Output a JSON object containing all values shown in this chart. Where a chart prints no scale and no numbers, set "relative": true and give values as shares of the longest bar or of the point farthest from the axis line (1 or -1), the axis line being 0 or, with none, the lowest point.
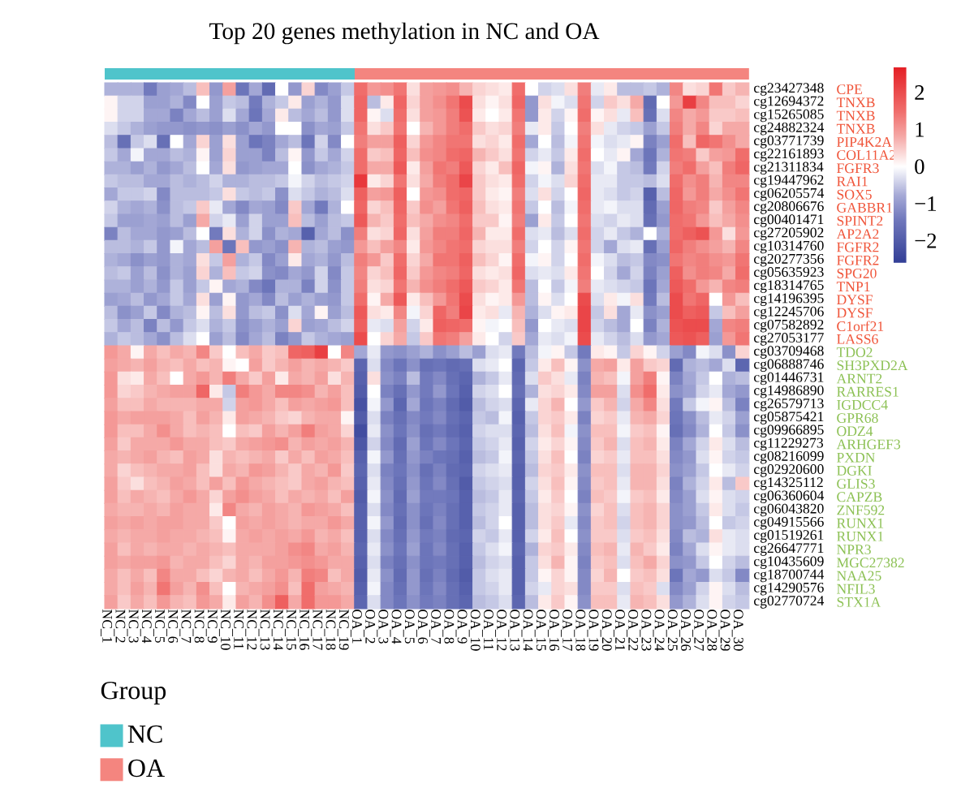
{
  "chart_data": [
    {
      "type": "bar",
      "title": "Top 20 genes methylation in NC and OA",
      "orientation": "horizontal",
      "stacked": true,
      "relative": true,
      "categories": [
        null
      ],
      "series": [
        {
          "name": "NC",
          "color": "#4fc4cb",
          "values": [
            0.388
          ]
        },
        {
          "name": "OA",
          "color": "#f4857f",
          "values": [
            0.612
          ]
        }
      ],
      "legend": "bottom left",
      "legend_title": "Group"
    },
    {
      "type": "heatmap",
      "categories": [
        "NC_1",
        "NC_2",
        "NC_3",
        "NC_4",
        "NC_5",
        "NC_6",
        "NC_7",
        "NC_8",
        "NC_9",
        "NC_10",
        "NC_11",
        "NC_12",
        "NC_13",
        "NC_14",
        "NC_15",
        "NC_16",
        "NC_17",
        "NC_18",
        "NC_19",
        "OA_1",
        "OA_2",
        "OA_3",
        "OA_4",
        "OA_5",
        "OA_6",
        "OA_7",
        "OA_8",
        "OA_9",
        "OA_10",
        "OA_11",
        "OA_12",
        "OA_13",
        "OA_14",
        "OA_15",
        "OA_16",
        "OA_17",
        "OA_18",
        "OA_19",
        "OA_20",
        "OA_21",
        "OA_22",
        "OA_23",
        "OA_24",
        "OA_25",
        "OA_26",
        "OA_27",
        "OA_28",
        "OA_29",
        "OA_30"
      ],
      "y_categories": [
        "cg23427348",
        "cg12694372",
        "cg15265085",
        "cg24882324",
        "cg03771739",
        "cg22161893",
        "cg21311834",
        "cg19447962",
        "cg06205574",
        "cg20806676",
        "cg00401471",
        "cg27205902",
        "cg10314760",
        "cg20277356",
        "cg05635923",
        "cg18314765",
        "cg14196395",
        "cg12245706",
        "cg07582892",
        "cg27053177",
        "cg03709468",
        "cg06888746",
        "cg01446731",
        "cg14986890",
        "cg26579713",
        "cg05875421",
        "cg09966895",
        "cg11229273",
        "cg08216099",
        "cg02920600",
        "cg14325112",
        "cg06360604",
        "cg06043820",
        "cg04915566",
        "cg01519261",
        "cg26647771",
        "cg10435609",
        "cg18700744",
        "cg14290576",
        "cg02770724"
      ],
      "y2_categories": [
        "CPE",
        "TNXB",
        "TNXB",
        "TNXB",
        "PIP4K2A",
        "COL11A2",
        "FGFR3",
        "RAI1",
        "SOX5",
        "GABBR1",
        "SPINT2",
        "AP2A2",
        "FGFR2",
        "FGFR2",
        "SPG20",
        "TNP1",
        "DYSF",
        "DYSF",
        "C1orf21",
        "LASS6",
        "TDO2",
        "SH3PXD2A",
        "ARNT2",
        "RARRES1",
        "IGDCC4",
        "GPR68",
        "ODZ4",
        "ARHGEF3",
        "PXDN",
        "DGKI",
        "GLIS3",
        "CAPZB",
        "ZNF592",
        "RUNX1",
        "RUNX1",
        "NPR3",
        "MGC27382",
        "NAA25",
        "NFIL3",
        "STX1A"
      ],
      "cells": [
        [
          -0.7,
          -0.7,
          -0.7,
          -1.4,
          -0.9,
          -0.8,
          -0.6,
          0.6,
          -1.0,
          0.9,
          -1.5,
          -0.8,
          -1.7,
          0.0,
          -1.0,
          0.4,
          -1.2,
          -0.9,
          -0.5,
          1.5,
          1.0,
          1.1,
          1.4,
          0.3,
          0.9,
          1.0,
          1.1,
          0.7,
          0.4,
          0.3,
          0.2,
          1.5,
          0.0,
          -0.4,
          -0.3,
          0.3,
          1.3,
          -0.2,
          0.2,
          -0.6,
          -0.6,
          -0.5,
          -0.7,
          1.2,
          0.3,
          0.4,
          1.4,
          0.5,
          0.7
        ],
        [
          0.1,
          -0.4,
          -0.4,
          -0.9,
          -0.9,
          -0.7,
          -1.2,
          0.0,
          -0.9,
          -0.5,
          -0.6,
          -1.4,
          -0.7,
          -0.5,
          0.2,
          -0.9,
          -0.7,
          -1.0,
          -0.3,
          1.6,
          -0.6,
          0.2,
          1.6,
          0.4,
          0.9,
          1.1,
          1.4,
          2.0,
          0.3,
          0.1,
          0.3,
          1.6,
          -1.0,
          0.3,
          -0.1,
          -0.3,
          1.4,
          -0.4,
          0.5,
          0.3,
          0.8,
          -1.7,
          0.0,
          1.0,
          2.2,
          1.2,
          0.6,
          0.6,
          0.4
        ],
        [
          0.1,
          -0.4,
          -0.4,
          -0.8,
          -0.8,
          -1.3,
          -0.8,
          -0.6,
          -0.9,
          -0.3,
          -0.8,
          -1.5,
          -0.8,
          0.2,
          -0.6,
          -0.8,
          -0.6,
          -1.0,
          -0.3,
          1.6,
          0.1,
          -0.3,
          1.5,
          0.3,
          0.9,
          1.0,
          1.3,
          1.9,
          0.2,
          0.0,
          0.2,
          1.4,
          -1.0,
          0.2,
          -0.4,
          0.1,
          1.5,
          0.1,
          0.3,
          -0.2,
          0.6,
          -1.6,
          -0.3,
          1.2,
          0.8,
          1.0,
          0.5,
          0.5,
          0.6
        ],
        [
          -0.3,
          -0.5,
          -0.7,
          -0.9,
          -1.0,
          -1.0,
          -1.1,
          -1.0,
          -1.1,
          -0.9,
          -1.1,
          -0.8,
          -1.0,
          0.0,
          0.0,
          -1.1,
          -0.8,
          -0.9,
          -0.5,
          1.4,
          0.3,
          0.5,
          1.4,
          0.0,
          0.7,
          1.0,
          1.3,
          1.5,
          0.5,
          0.3,
          0.4,
          1.3,
          -0.2,
          0.2,
          -0.5,
          0.0,
          1.3,
          0.3,
          -0.2,
          -0.4,
          -0.5,
          -0.9,
          -0.5,
          1.3,
          0.8,
          1.2,
          0.4,
          0.8,
          0.8
        ],
        [
          -0.6,
          -1.6,
          -0.5,
          -0.3,
          -1.6,
          0.0,
          -0.8,
          0.4,
          -0.9,
          0.3,
          -0.9,
          -1.5,
          -1.3,
          -0.8,
          -0.6,
          -1.5,
          -0.4,
          -1.2,
          0.0,
          1.3,
          0.9,
          0.9,
          1.7,
          0.4,
          1.0,
          1.2,
          1.4,
          1.4,
          0.3,
          0.4,
          0.2,
          1.5,
          -0.8,
          0.0,
          -0.6,
          -0.1,
          1.4,
          -0.1,
          -0.3,
          -0.2,
          0.1,
          -1.3,
          -0.9,
          1.5,
          0.6,
          1.6,
          1.4,
          1.1,
          0.8
        ],
        [
          -0.5,
          -0.8,
          -0.1,
          -0.8,
          -0.8,
          -0.6,
          -0.7,
          0.1,
          -0.9,
          0.4,
          -0.9,
          -0.9,
          -1.3,
          -0.6,
          0.1,
          -1.0,
          -0.5,
          -0.8,
          -0.4,
          1.5,
          0.5,
          0.6,
          1.6,
          0.6,
          1.1,
          1.2,
          1.5,
          1.6,
          0.7,
          0.5,
          0.3,
          1.4,
          -0.4,
          -0.2,
          -0.5,
          0.2,
          1.5,
          0.0,
          -0.2,
          0.1,
          -0.8,
          -1.5,
          -0.7,
          1.4,
          1.3,
          0.5,
          0.9,
          1.0,
          1.5
        ],
        [
          -0.7,
          -0.7,
          -0.9,
          -0.7,
          -1.0,
          -0.8,
          -0.6,
          0.0,
          -0.8,
          0.3,
          -1.0,
          -0.9,
          -0.8,
          -0.8,
          0.0,
          -1.1,
          -0.8,
          -0.7,
          -0.5,
          1.5,
          0.8,
          0.8,
          1.8,
          0.2,
          0.9,
          1.4,
          1.3,
          1.8,
          0.4,
          0.2,
          0.6,
          1.6,
          -0.1,
          0.1,
          -0.7,
          0.3,
          1.4,
          -0.3,
          -0.1,
          -0.5,
          -0.6,
          -1.4,
          -0.4,
          1.3,
          1.5,
          0.9,
          0.6,
          1.3,
          1.6
        ],
        [
          -0.5,
          -0.6,
          -0.6,
          -0.8,
          -0.8,
          -0.6,
          -0.7,
          -0.6,
          -0.4,
          -0.7,
          -0.7,
          -0.6,
          -0.6,
          -0.5,
          -0.1,
          -0.4,
          -0.6,
          -0.5,
          -0.4,
          2.3,
          0.2,
          0.4,
          1.4,
          0.3,
          0.8,
          1.3,
          1.5,
          2.1,
          0.5,
          0.3,
          0.2,
          1.5,
          -0.4,
          -0.1,
          -0.3,
          0.4,
          1.5,
          -0.2,
          -0.2,
          -0.5,
          -0.5,
          -0.6,
          -0.3,
          1.5,
          1.1,
          1.3,
          0.7,
          1.2,
          1.2
        ],
        [
          -0.8,
          -0.5,
          -0.5,
          -0.4,
          -1.2,
          -0.6,
          -0.6,
          -0.6,
          -0.5,
          0.3,
          -0.5,
          -0.6,
          -0.5,
          -1.1,
          -0.3,
          -0.5,
          -0.7,
          -0.6,
          -0.3,
          1.7,
          0.9,
          1.0,
          1.7,
          0.0,
          1.0,
          1.1,
          1.5,
          1.6,
          0.5,
          0.2,
          0.1,
          1.3,
          -0.3,
          0.3,
          -0.4,
          0.0,
          1.6,
          -0.2,
          -0.3,
          -0.5,
          -0.4,
          -1.9,
          -0.6,
          1.6,
          1.0,
          1.3,
          0.8,
          1.1,
          1.4
        ],
        [
          -0.4,
          -0.7,
          -0.8,
          -0.7,
          -1.1,
          -0.6,
          -0.5,
          0.5,
          -0.2,
          -0.8,
          -1.2,
          -0.8,
          -0.9,
          -1.2,
          0.5,
          -0.8,
          -1.4,
          -0.7,
          0.0,
          1.6,
          0.4,
          0.6,
          1.6,
          0.5,
          1.1,
          0.9,
          1.4,
          1.7,
          0.6,
          0.3,
          0.2,
          1.4,
          -0.5,
          0.0,
          -0.6,
          -0.1,
          1.5,
          -0.2,
          -0.1,
          -0.3,
          -0.3,
          -1.7,
          -0.9,
          1.6,
          1.3,
          1.2,
          0.5,
          0.9,
          1.2
        ],
        [
          -0.5,
          -0.9,
          -0.9,
          -0.8,
          -0.9,
          -0.6,
          -0.9,
          0.8,
          -0.4,
          -0.2,
          -0.9,
          -0.4,
          -0.9,
          -0.9,
          0.6,
          -0.6,
          -0.9,
          -0.6,
          -0.5,
          1.8,
          0.7,
          0.5,
          1.5,
          0.6,
          0.8,
          1.1,
          1.2,
          1.5,
          0.5,
          0.5,
          0.1,
          1.3,
          -0.9,
          0.2,
          -0.5,
          0.0,
          1.4,
          -0.3,
          -0.4,
          -0.2,
          -0.3,
          -1.6,
          -1.0,
          1.5,
          1.4,
          1.0,
          0.6,
          0.8,
          1.1
        ],
        [
          -1.3,
          -0.6,
          -0.8,
          -0.8,
          -1.0,
          -0.9,
          -0.6,
          0.0,
          -1.4,
          0.3,
          -0.7,
          -0.4,
          -1.1,
          -0.7,
          -0.8,
          -1.9,
          -0.8,
          -0.6,
          -1.1,
          1.3,
          0.3,
          0.4,
          1.6,
          0.3,
          0.9,
          1.3,
          1.3,
          1.6,
          0.7,
          0.2,
          0.2,
          1.5,
          -0.3,
          -0.2,
          -0.6,
          -0.3,
          1.5,
          -0.4,
          -0.2,
          -0.5,
          -0.7,
          0.0,
          -0.7,
          1.5,
          1.7,
          1.9,
          1.0,
          0.3,
          1.0
        ],
        [
          -0.6,
          -0.6,
          -0.7,
          -0.5,
          -1.0,
          -0.1,
          -0.8,
          -0.6,
          0.9,
          -1.5,
          0.6,
          -1.0,
          -0.9,
          -1.1,
          0.7,
          -0.7,
          -0.6,
          -0.9,
          -1.0,
          1.0,
          0.6,
          0.9,
          1.2,
          0.2,
          1.0,
          1.2,
          1.4,
          1.5,
          0.4,
          0.3,
          0.3,
          1.3,
          -0.4,
          0.0,
          -0.4,
          0.1,
          1.4,
          -0.4,
          -0.8,
          -0.3,
          -0.2,
          -1.6,
          -0.9,
          1.6,
          1.3,
          1.1,
          0.9,
          0.7,
          1.2
        ],
        [
          -0.7,
          -0.8,
          -1.1,
          -0.9,
          -1.0,
          -0.7,
          -0.8,
          0.3,
          -0.5,
          0.9,
          -0.7,
          -0.5,
          -1.2,
          -0.9,
          0.2,
          -0.8,
          -0.7,
          -1.0,
          -0.6,
          1.3,
          1.0,
          0.5,
          1.5,
          0.4,
          0.8,
          1.4,
          1.4,
          1.7,
          0.6,
          0.4,
          0.1,
          1.5,
          -0.1,
          0.1,
          -0.4,
          0.0,
          1.5,
          -0.1,
          -0.3,
          -0.6,
          -0.5,
          -1.2,
          -1.1,
          1.4,
          1.2,
          1.3,
          1.1,
          1.0,
          1.4
        ],
        [
          -0.6,
          -0.5,
          -0.9,
          -0.6,
          -1.1,
          -0.7,
          -0.9,
          0.4,
          -0.7,
          0.6,
          -0.5,
          -0.4,
          -1.1,
          -1.2,
          -0.8,
          -1.0,
          -0.4,
          -1.2,
          -0.5,
          1.2,
          0.4,
          0.6,
          1.6,
          0.5,
          1.0,
          1.2,
          1.3,
          1.6,
          0.3,
          0.2,
          0.3,
          1.6,
          -0.3,
          -0.2,
          -0.3,
          0.2,
          1.4,
          0.0,
          -0.4,
          -0.8,
          -0.4,
          -1.3,
          -0.9,
          1.7,
          1.1,
          1.3,
          1.2,
          0.8,
          1.5
        ],
        [
          -0.7,
          -0.7,
          -0.9,
          -0.7,
          -1.0,
          -0.5,
          -0.9,
          -0.5,
          0.1,
          -0.8,
          -0.7,
          -1.2,
          -1.5,
          -0.7,
          -0.7,
          -1.3,
          -0.4,
          -1.1,
          -0.5,
          1.3,
          0.3,
          0.4,
          1.4,
          0.7,
          1.1,
          1.3,
          1.5,
          1.8,
          0.5,
          0.4,
          0.2,
          1.4,
          -0.6,
          0.0,
          -0.5,
          -0.1,
          1.3,
          -0.2,
          -0.3,
          -0.4,
          -0.5,
          -1.5,
          -0.8,
          1.8,
          1.5,
          1.0,
          0.7,
          1.2,
          1.3
        ],
        [
          -0.9,
          -0.8,
          -0.6,
          -1.0,
          -0.8,
          -0.5,
          -0.8,
          0.3,
          -0.9,
          0.1,
          -1.0,
          -0.8,
          -1.2,
          -0.6,
          -0.9,
          -0.7,
          -0.9,
          -1.0,
          -0.5,
          1.5,
          0.1,
          0.8,
          1.8,
          0.2,
          0.6,
          1.0,
          1.4,
          2.0,
          0.3,
          0.1,
          0.2,
          1.0,
          -0.6,
          0.1,
          -0.3,
          0.0,
          2.0,
          -0.3,
          0.2,
          -0.1,
          0.3,
          -1.4,
          -0.6,
          2.0,
          1.4,
          1.6,
          0.0,
          1.0,
          0.6
        ],
        [
          -0.6,
          -1.1,
          -0.9,
          -0.5,
          -1.2,
          -0.7,
          -0.6,
          0.1,
          -0.6,
          0.3,
          -1.0,
          -0.6,
          -0.5,
          -1.1,
          -0.3,
          -0.8,
          0.1,
          -0.9,
          -0.6,
          1.8,
          0.3,
          0.2,
          1.2,
          -0.1,
          0.4,
          1.6,
          1.3,
          2.1,
          0.2,
          0.3,
          -0.2,
          0.7,
          -0.7,
          -0.3,
          0.1,
          0.2,
          2.1,
          -0.5,
          0.3,
          -0.8,
          -0.2,
          -1.1,
          -0.9,
          2.0,
          1.7,
          1.8,
          -0.5,
          0.6,
          0.9
        ],
        [
          -0.5,
          -0.8,
          -0.6,
          -1.3,
          -0.6,
          -1.0,
          -0.5,
          -0.3,
          -0.7,
          -0.5,
          -1.1,
          -0.9,
          -0.7,
          -0.9,
          0.4,
          -0.9,
          -0.8,
          -0.6,
          -0.4,
          1.7,
          -0.2,
          -0.3,
          0.9,
          -0.4,
          0.2,
          1.7,
          1.6,
          1.5,
          0.1,
          -0.1,
          0.0,
          0.6,
          -1.0,
          0.0,
          -0.2,
          -0.3,
          2.1,
          -0.4,
          -0.6,
          -0.8,
          0.0,
          -1.3,
          -0.7,
          1.9,
          2.0,
          2.0,
          -0.8,
          1.2,
          1.3
        ],
        [
          -0.7,
          -0.5,
          -0.6,
          -0.8,
          -1.1,
          -0.6,
          -0.3,
          0.0,
          -0.9,
          -0.6,
          -1.2,
          -0.8,
          -0.6,
          -1.3,
          -1.0,
          -0.5,
          -0.7,
          -0.8,
          -0.9,
          2.0,
          0.0,
          0.4,
          0.8,
          -0.5,
          0.5,
          1.4,
          1.3,
          0.9,
          0.2,
          0.0,
          -0.4,
          0.5,
          -0.8,
          -0.2,
          -0.3,
          -0.1,
          2.0,
          -0.2,
          -0.4,
          -0.6,
          -0.3,
          -1.0,
          -0.8,
          1.8,
          1.9,
          1.7,
          -0.9,
          1.0,
          1.4
        ],
        [
          1.0,
          0.8,
          0.1,
          0.8,
          0.6,
          0.8,
          0.7,
          1.2,
          0.5,
          0.0,
          0.6,
          0.8,
          0.5,
          0.6,
          1.6,
          1.7,
          2.2,
          0.0,
          1.2,
          -0.8,
          -0.2,
          -1.0,
          -1.1,
          -0.9,
          -0.7,
          -1.1,
          -0.9,
          -0.6,
          -0.9,
          -0.3,
          -0.2,
          -1.4,
          -0.6,
          -0.1,
          0.1,
          -0.5,
          -1.4,
          0.2,
          0.1,
          -0.5,
          0.4,
          0.1,
          -0.4,
          -0.9,
          -1.2,
          -0.1,
          -0.3,
          -1.1,
          0.4
        ],
        [
          0.9,
          0.8,
          0.7,
          0.9,
          0.7,
          0.6,
          0.8,
          0.6,
          0.7,
          0.1,
          0.0,
          0.9,
          0.5,
          0.7,
          0.9,
          0.7,
          0.8,
          0.7,
          0.5,
          -1.8,
          -0.3,
          -1.2,
          -1.5,
          -1.1,
          -1.6,
          -1.5,
          -1.7,
          -1.6,
          -0.3,
          -0.2,
          0.0,
          -1.8,
          -0.5,
          0.2,
          0.6,
          0.1,
          -1.1,
          0.8,
          0.9,
          0.2,
          0.9,
          0.5,
          0.4,
          -1.7,
          -0.7,
          -0.6,
          -0.8,
          -0.3,
          -1.8
        ],
        [
          1.0,
          0.3,
          0.2,
          0.8,
          0.6,
          0.0,
          0.8,
          1.0,
          0.7,
          1.3,
          0.8,
          0.5,
          0.9,
          0.2,
          0.8,
          0.7,
          0.9,
          0.3,
          0.7,
          -1.9,
          0.3,
          -1.1,
          -1.3,
          -0.6,
          -1.4,
          -1.2,
          -1.6,
          -1.8,
          -0.7,
          -0.5,
          -0.2,
          -1.7,
          -0.3,
          0.5,
          0.3,
          -0.2,
          -1.3,
          0.7,
          0.6,
          -0.1,
          0.9,
          1.3,
          0.1,
          -1.3,
          -0.8,
          -0.5,
          0.0,
          -0.7,
          -0.6
        ],
        [
          1.0,
          0.4,
          0.5,
          0.7,
          0.8,
          0.9,
          0.9,
          1.6,
          0.2,
          -0.5,
          1.3,
          1.0,
          0.8,
          1.2,
          1.2,
          1.1,
          0.7,
          0.9,
          0.6,
          -2.0,
          0.0,
          -1.3,
          -1.6,
          -1.0,
          -1.4,
          -1.0,
          -1.5,
          -1.9,
          -0.4,
          -0.3,
          0.0,
          -1.6,
          -0.7,
          0.3,
          0.4,
          0.2,
          -1.2,
          0.9,
          0.9,
          -0.3,
          1.1,
          1.5,
          0.2,
          -1.1,
          -0.9,
          -0.4,
          -0.2,
          -0.8,
          -1.0
        ],
        [
          0.9,
          0.6,
          0.6,
          0.8,
          0.7,
          0.7,
          0.7,
          0.8,
          0.8,
          -0.4,
          0.9,
          1.0,
          0.8,
          0.6,
          0.9,
          0.8,
          0.9,
          1.0,
          0.6,
          -2.2,
          -0.1,
          -1.0,
          -1.8,
          -0.8,
          -1.5,
          -1.3,
          -1.7,
          -2.0,
          -0.6,
          -0.4,
          -0.3,
          -1.8,
          -0.2,
          0.4,
          0.7,
          0.0,
          -1.0,
          0.5,
          0.7,
          -0.4,
          0.8,
          1.2,
          0.3,
          -1.4,
          -0.5,
          -0.1,
          0.1,
          -0.6,
          -1.3
        ],
        [
          1.0,
          0.8,
          0.9,
          0.9,
          0.9,
          0.8,
          0.6,
          0.9,
          0.7,
          0.2,
          0.9,
          0.8,
          0.7,
          0.5,
          0.4,
          0.7,
          0.8,
          0.8,
          0.1,
          -2.0,
          -0.3,
          -1.3,
          -1.6,
          -1.2,
          -1.4,
          -1.2,
          -1.6,
          -1.8,
          -0.5,
          -0.6,
          -0.1,
          -1.9,
          -0.5,
          0.4,
          0.5,
          0.2,
          -1.3,
          0.4,
          0.5,
          -0.2,
          0.7,
          0.8,
          0.4,
          -1.5,
          -1.1,
          -0.6,
          -0.2,
          -0.4,
          -0.9
        ],
        [
          1.0,
          0.6,
          0.6,
          0.8,
          1.1,
          0.8,
          0.6,
          0.7,
          0.6,
          0.0,
          0.6,
          0.5,
          0.9,
          0.7,
          0.9,
          1.3,
          0.9,
          0.8,
          0.4,
          -2.3,
          -0.2,
          -1.1,
          -1.5,
          -1.1,
          -1.6,
          -1.4,
          -1.7,
          -1.9,
          -0.4,
          -0.3,
          -0.3,
          -1.8,
          -0.6,
          0.3,
          0.6,
          -0.1,
          -1.1,
          0.6,
          0.6,
          -0.1,
          0.5,
          0.6,
          0.1,
          -1.6,
          -1.2,
          -0.7,
          0.0,
          -0.5,
          -1.1
        ],
        [
          0.9,
          0.5,
          0.8,
          0.8,
          0.8,
          1.0,
          0.8,
          0.8,
          0.6,
          0.5,
          0.8,
          0.9,
          1.0,
          1.1,
          0.7,
          0.9,
          0.8,
          0.9,
          0.7,
          -2.1,
          -0.4,
          -1.2,
          -1.7,
          -0.9,
          -1.5,
          -1.2,
          -1.5,
          -1.8,
          -0.5,
          -0.4,
          -0.2,
          -1.9,
          -0.4,
          0.2,
          0.4,
          0.1,
          -1.2,
          0.5,
          0.7,
          -0.3,
          0.6,
          0.7,
          0.2,
          -1.3,
          -0.8,
          -0.4,
          0.2,
          -0.3,
          -0.6
        ],
        [
          0.8,
          0.7,
          0.8,
          0.9,
          0.7,
          0.6,
          0.9,
          0.8,
          0.3,
          0.7,
          0.6,
          0.7,
          0.8,
          0.5,
          0.8,
          0.6,
          0.9,
          0.8,
          0.6,
          -1.9,
          -0.1,
          -1.0,
          -1.6,
          -1.0,
          -1.3,
          -1.5,
          -1.6,
          -1.9,
          -0.6,
          -0.5,
          -0.1,
          -1.8,
          -0.5,
          0.3,
          0.6,
          0.0,
          -1.3,
          0.4,
          0.5,
          -0.2,
          0.6,
          0.6,
          0.3,
          -1.2,
          -1.0,
          -0.3,
          0.1,
          -0.4,
          -0.5
        ],
        [
          0.8,
          0.4,
          0.6,
          0.7,
          0.8,
          0.8,
          0.9,
          0.6,
          0.3,
          0.8,
          0.7,
          1.0,
          0.9,
          0.7,
          0.5,
          0.8,
          0.7,
          1.0,
          0.5,
          -1.8,
          -0.3,
          -1.3,
          -1.5,
          -1.1,
          -1.6,
          -1.3,
          -1.7,
          -1.8,
          -0.4,
          -0.3,
          -0.2,
          -1.9,
          -0.6,
          0.4,
          0.5,
          0.2,
          -1.1,
          0.6,
          0.6,
          -0.3,
          0.7,
          0.7,
          0.4,
          -1.1,
          -0.9,
          -0.5,
          0.0,
          -0.2,
          -0.4
        ],
        [
          0.9,
          0.5,
          0.3,
          0.6,
          0.7,
          0.9,
          0.8,
          0.6,
          0.9,
          0.6,
          1.0,
          0.8,
          0.7,
          0.6,
          0.5,
          0.8,
          0.9,
          0.7,
          0.6,
          -1.9,
          -0.2,
          -1.2,
          -1.6,
          -1.0,
          -1.5,
          -1.2,
          -1.6,
          -2.0,
          -0.5,
          -0.4,
          -0.3,
          -1.9,
          -0.4,
          0.3,
          0.6,
          0.1,
          -1.2,
          0.5,
          0.6,
          -0.2,
          0.7,
          0.7,
          0.3,
          -1.3,
          -0.7,
          -0.4,
          0.2,
          -0.6,
          0.5
        ],
        [
          0.9,
          0.6,
          0.8,
          0.7,
          0.6,
          0.8,
          1.0,
          0.8,
          0.4,
          0.9,
          1.1,
          0.9,
          0.8,
          0.6,
          0.8,
          0.7,
          0.8,
          0.6,
          0.9,
          -2.0,
          -0.1,
          -1.1,
          -1.7,
          -0.9,
          -1.4,
          -1.4,
          -1.5,
          -1.9,
          -0.6,
          -0.5,
          -0.2,
          -1.8,
          -0.5,
          0.2,
          0.5,
          0.0,
          -1.3,
          0.6,
          0.5,
          -0.1,
          0.5,
          0.6,
          0.2,
          -1.2,
          -0.9,
          -0.3,
          0.1,
          -0.3,
          -0.4
        ],
        [
          0.8,
          0.7,
          0.7,
          0.8,
          0.7,
          0.9,
          0.8,
          0.8,
          0.2,
          1.2,
          0.8,
          0.7,
          0.9,
          0.8,
          0.7,
          1.0,
          0.9,
          0.8,
          0.6,
          -1.9,
          -0.3,
          -1.2,
          -1.6,
          -1.1,
          -1.5,
          -1.3,
          -1.6,
          -1.9,
          -0.5,
          -0.4,
          -0.2,
          -1.9,
          -0.6,
          0.3,
          0.4,
          0.1,
          -1.1,
          0.4,
          0.6,
          -0.3,
          0.6,
          0.7,
          0.4,
          -1.1,
          -0.9,
          -0.5,
          0.2,
          -0.3,
          -0.5
        ],
        [
          0.9,
          0.8,
          0.9,
          0.8,
          0.9,
          0.9,
          0.8,
          0.8,
          0.5,
          0.0,
          0.9,
          0.8,
          0.9,
          0.8,
          0.7,
          0.8,
          0.8,
          1.0,
          0.8,
          -1.9,
          -0.1,
          -1.0,
          -1.7,
          -1.1,
          -1.6,
          -1.2,
          -1.6,
          -1.9,
          -0.6,
          -0.4,
          0.0,
          -1.9,
          -0.6,
          0.3,
          0.5,
          -0.2,
          -1.2,
          0.5,
          0.6,
          -0.4,
          0.6,
          0.7,
          0.4,
          -1.1,
          -1.0,
          -0.6,
          0.0,
          -0.5,
          -0.4
        ],
        [
          0.8,
          0.7,
          0.8,
          0.8,
          0.9,
          0.8,
          0.8,
          0.7,
          0.6,
          0.1,
          0.8,
          0.9,
          0.8,
          0.9,
          0.8,
          1.0,
          0.7,
          0.8,
          0.6,
          -1.9,
          -0.3,
          -1.2,
          -1.6,
          -1.0,
          -1.4,
          -1.3,
          -1.7,
          -1.8,
          -0.4,
          -0.5,
          -0.2,
          -1.9,
          -0.4,
          0.2,
          0.6,
          0.0,
          -1.1,
          0.5,
          0.5,
          -0.3,
          0.5,
          0.6,
          0.3,
          -1.2,
          -0.6,
          -0.7,
          0.3,
          -0.2,
          -0.3
        ],
        [
          0.9,
          0.6,
          0.8,
          0.7,
          0.8,
          0.8,
          0.7,
          0.8,
          0.7,
          0.6,
          0.8,
          0.8,
          0.8,
          0.9,
          1.1,
          1.2,
          0.8,
          0.9,
          0.7,
          -1.8,
          -0.2,
          -1.1,
          -1.5,
          -0.9,
          -1.5,
          -1.2,
          -1.6,
          -1.9,
          -0.5,
          -0.3,
          -0.1,
          -1.8,
          -0.7,
          0.4,
          0.5,
          0.2,
          -1.2,
          0.6,
          0.7,
          -0.2,
          0.7,
          0.5,
          0.2,
          -1.3,
          -0.8,
          -0.3,
          0.1,
          -0.2,
          -0.3
        ],
        [
          0.9,
          0.8,
          0.9,
          0.9,
          1.0,
          0.7,
          0.8,
          0.8,
          0.6,
          0.4,
          0.8,
          0.7,
          0.9,
          0.9,
          1.0,
          1.1,
          1.0,
          0.8,
          0.8,
          -1.9,
          -0.3,
          -1.3,
          -1.6,
          -1.1,
          -1.5,
          -1.4,
          -1.6,
          -1.9,
          -0.6,
          -0.4,
          -0.3,
          -1.9,
          -0.5,
          0.3,
          0.7,
          0.1,
          -1.3,
          0.5,
          0.6,
          -0.3,
          0.6,
          0.8,
          0.4,
          -1.1,
          -1.0,
          -0.5,
          0.0,
          -0.4,
          -0.6
        ],
        [
          0.8,
          0.6,
          0.8,
          0.6,
          1.2,
          0.8,
          0.8,
          0.6,
          0.4,
          0.7,
          0.8,
          0.6,
          0.8,
          1.0,
          0.7,
          1.3,
          1.2,
          0.6,
          0.8,
          -2.0,
          -0.2,
          -1.1,
          -1.7,
          -1.0,
          -1.6,
          -1.3,
          -1.7,
          -2.0,
          -0.5,
          -0.3,
          -0.2,
          -1.9,
          -0.5,
          0.1,
          0.4,
          0.1,
          -1.2,
          0.4,
          0.7,
          0.0,
          0.5,
          0.6,
          0.3,
          -1.5,
          -0.8,
          -1.0,
          -0.3,
          -0.5,
          -1.2
        ],
        [
          0.8,
          0.6,
          0.9,
          0.7,
          1.4,
          0.9,
          0.7,
          1.1,
          0.6,
          0.0,
          0.7,
          0.8,
          0.9,
          1.1,
          0.6,
          1.5,
          0.9,
          0.8,
          0.7,
          -1.9,
          -0.1,
          -1.2,
          -1.6,
          -1.0,
          -1.5,
          -1.2,
          -1.6,
          -1.9,
          -0.5,
          -0.4,
          -0.2,
          -1.9,
          -0.4,
          -0.2,
          0.4,
          0.3,
          -1.2,
          0.5,
          0.5,
          -0.3,
          0.6,
          0.5,
          -0.3,
          -1.2,
          -0.9,
          -0.4,
          0.1,
          -0.3,
          -0.6
        ],
        [
          0.9,
          0.5,
          0.8,
          0.6,
          1.0,
          0.7,
          0.6,
          1.0,
          0.8,
          0.2,
          0.9,
          0.7,
          1.1,
          1.7,
          0.8,
          1.5,
          1.0,
          1.0,
          0.8,
          -1.8,
          -0.3,
          -1.2,
          -1.5,
          -1.1,
          -1.4,
          -1.3,
          -1.6,
          -1.8,
          -0.6,
          -0.5,
          -0.3,
          -1.8,
          -0.6,
          0.2,
          0.5,
          0.1,
          -1.1,
          0.6,
          0.6,
          -0.2,
          0.7,
          0.6,
          0.3,
          -1.0,
          -0.7,
          -0.3,
          0.1,
          -0.4,
          -0.5
        ]
      ],
      "clim": [
        -2.6,
        2.7
      ],
      "cticks": [
        {
          "value": -2,
          "label": "−2"
        },
        {
          "value": -1,
          "label": "−1"
        },
        0,
        1,
        2
      ]
    }
  ]
}
